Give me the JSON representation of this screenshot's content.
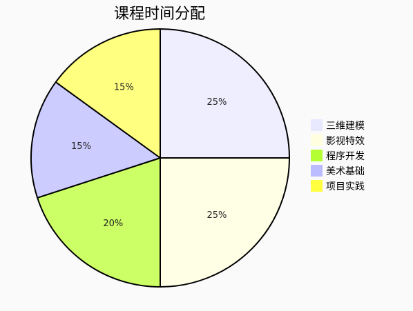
{
  "chart_data": {
    "type": "pie",
    "title": "课程时间分配",
    "categories": [
      "三维建模",
      "影视特效",
      "程序开发",
      "美术基础",
      "项目实践"
    ],
    "values": [
      25,
      25,
      20,
      15,
      15
    ],
    "value_labels": [
      "25%",
      "25%",
      "20%",
      "15%",
      "15%"
    ],
    "colors": [
      "#eeeeff",
      "#ffffe6",
      "#ccff66",
      "#ccccff",
      "#ffff80"
    ],
    "legend_colors": [
      "#e8e8ff",
      "#ffffe0",
      "#b3ff33",
      "#bbbbff",
      "#ffff40"
    ],
    "start_angle_deg": -90,
    "direction": "clockwise",
    "legend_position": "right"
  }
}
